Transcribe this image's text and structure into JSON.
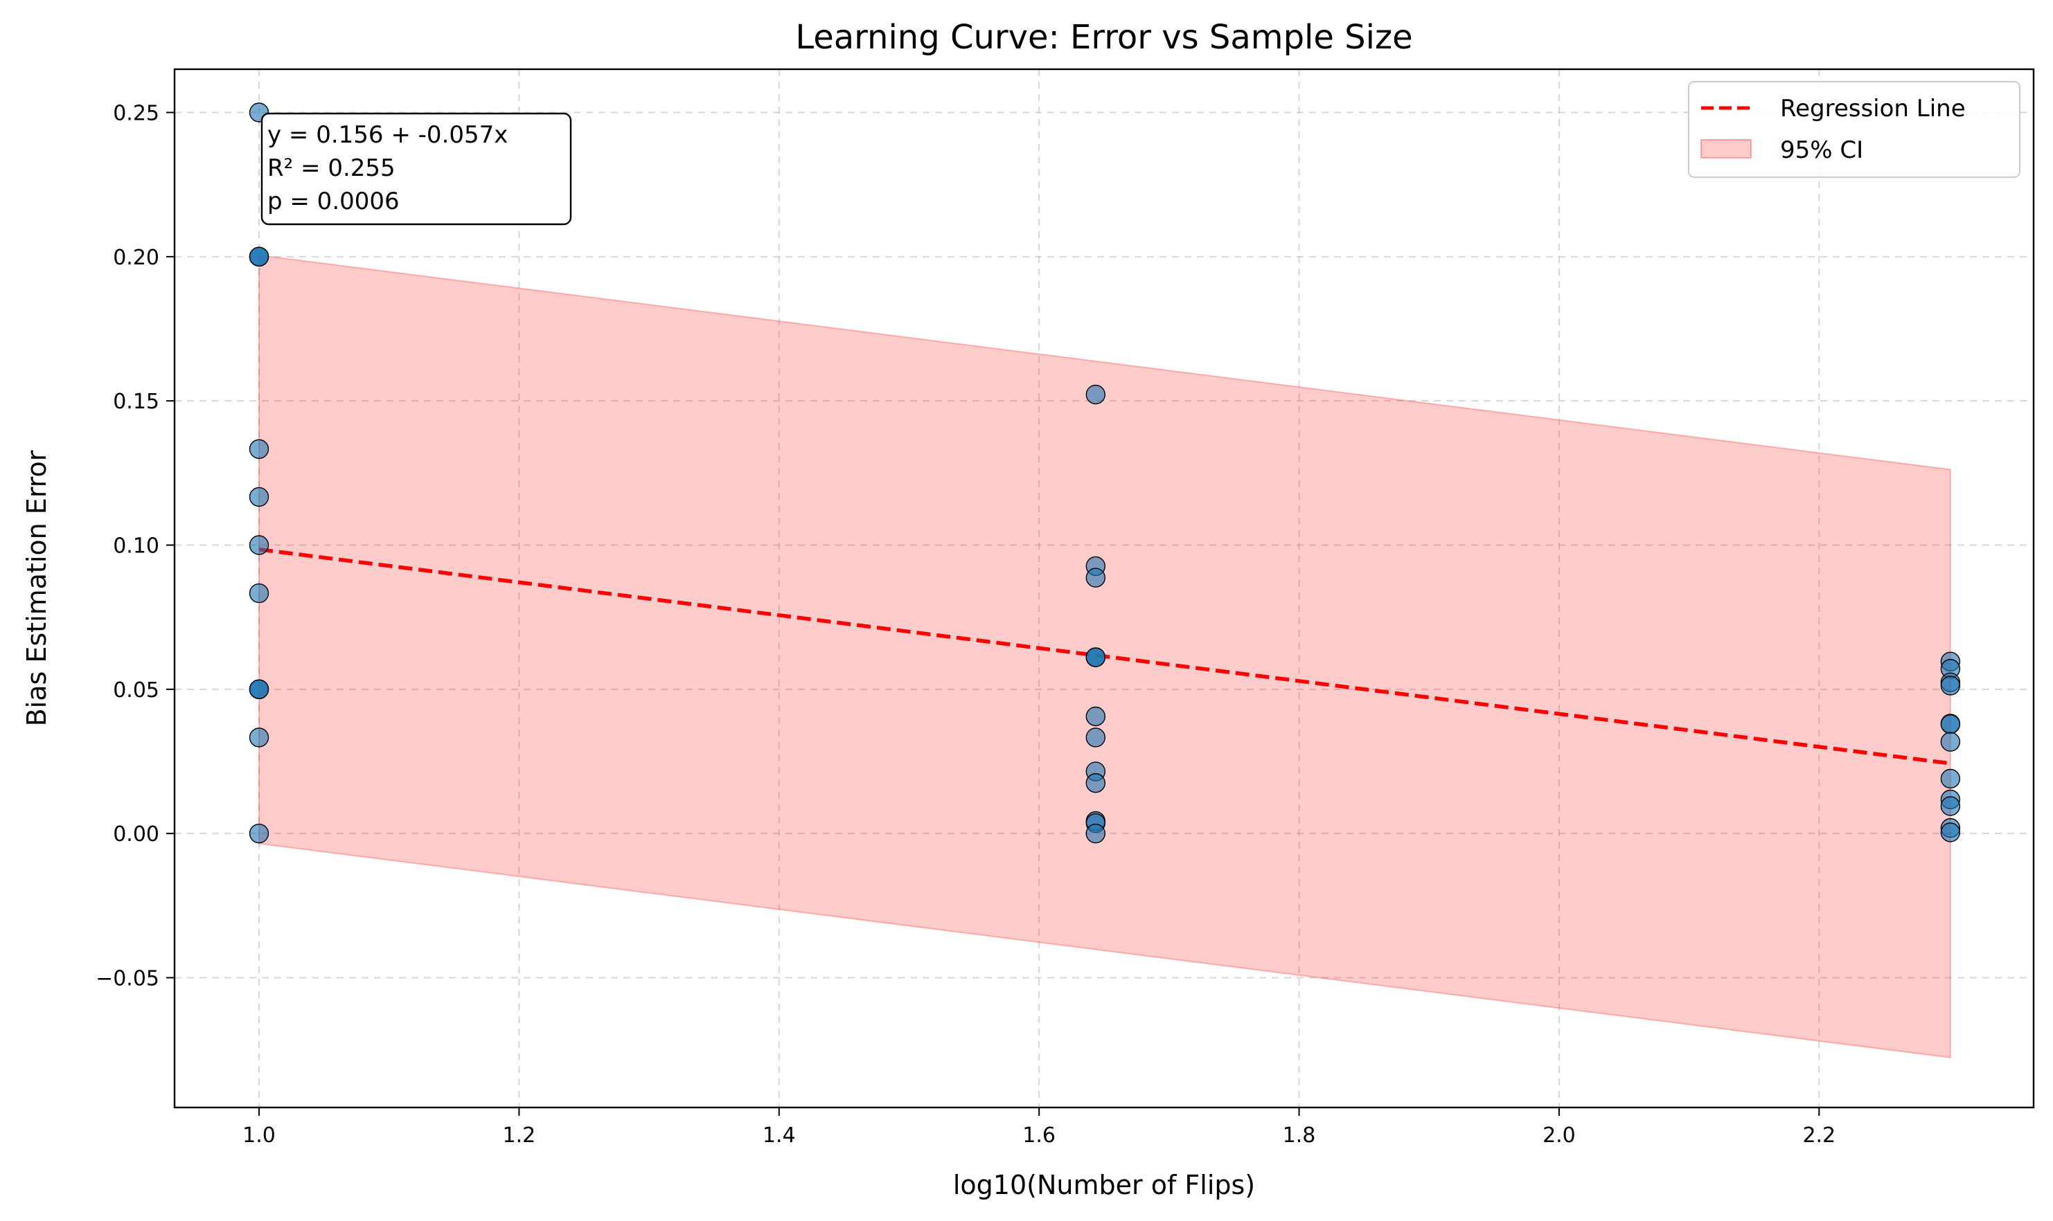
{
  "chart_data": {
    "type": "scatter",
    "title": "Learning Curve: Error vs Sample Size",
    "xlabel": "log10(Number of Flips)",
    "ylabel": "Bias Estimation Error",
    "xlim": [
      0.935,
      2.365
    ],
    "ylim": [
      -0.095,
      0.265
    ],
    "x_ticks": [
      1.0,
      1.2,
      1.4,
      1.6,
      1.8,
      2.0,
      2.2
    ],
    "x_tick_labels": [
      "1.0",
      "1.2",
      "1.4",
      "1.6",
      "1.8",
      "2.0",
      "2.2"
    ],
    "y_ticks": [
      -0.05,
      0.0,
      0.05,
      0.1,
      0.15,
      0.2,
      0.25
    ],
    "y_tick_labels": [
      "−0.05",
      "0.00",
      "0.05",
      "0.10",
      "0.15",
      "0.20",
      "0.25"
    ],
    "grid": true,
    "legend_position": "top-right",
    "point_color": "#1f77b4",
    "line_color": "#ff0000",
    "band_color": "#ff0000",
    "points": [
      {
        "x": 1.0,
        "y": 0.25
      },
      {
        "x": 1.0,
        "y": 0.2
      },
      {
        "x": 1.0,
        "y": 0.2
      },
      {
        "x": 1.0,
        "y": 0.2
      },
      {
        "x": 1.0,
        "y": 0.1333
      },
      {
        "x": 1.0,
        "y": 0.1167
      },
      {
        "x": 1.0,
        "y": 0.1
      },
      {
        "x": 1.0,
        "y": 0.0833
      },
      {
        "x": 1.0,
        "y": 0.05
      },
      {
        "x": 1.0,
        "y": 0.05
      },
      {
        "x": 1.0,
        "y": 0.05
      },
      {
        "x": 1.0,
        "y": 0.0333
      },
      {
        "x": 1.0,
        "y": 0.0
      },
      {
        "x": 1.6435,
        "y": 0.1522
      },
      {
        "x": 1.6435,
        "y": 0.0927
      },
      {
        "x": 1.6435,
        "y": 0.0887
      },
      {
        "x": 1.6435,
        "y": 0.0611
      },
      {
        "x": 1.6435,
        "y": 0.0611
      },
      {
        "x": 1.6435,
        "y": 0.0611
      },
      {
        "x": 1.6435,
        "y": 0.0406
      },
      {
        "x": 1.6435,
        "y": 0.0333
      },
      {
        "x": 1.6435,
        "y": 0.0215
      },
      {
        "x": 1.6435,
        "y": 0.0175
      },
      {
        "x": 1.6435,
        "y": 0.0043
      },
      {
        "x": 1.6435,
        "y": 0.0036
      },
      {
        "x": 1.6435,
        "y": 0.0
      },
      {
        "x": 2.301,
        "y": 0.0596
      },
      {
        "x": 2.301,
        "y": 0.0571
      },
      {
        "x": 2.301,
        "y": 0.0524
      },
      {
        "x": 2.301,
        "y": 0.0513
      },
      {
        "x": 2.301,
        "y": 0.0381
      },
      {
        "x": 2.301,
        "y": 0.0379
      },
      {
        "x": 2.301,
        "y": 0.0318
      },
      {
        "x": 2.301,
        "y": 0.019
      },
      {
        "x": 2.301,
        "y": 0.0118
      },
      {
        "x": 2.301,
        "y": 0.0095
      },
      {
        "x": 2.301,
        "y": 0.0019
      },
      {
        "x": 2.301,
        "y": 0.0004
      }
    ],
    "regression_line": {
      "name": "Regression Line",
      "x": [
        1.0,
        2.301
      ],
      "y": [
        0.0985,
        0.0243
      ]
    },
    "confidence_band": {
      "name": "95% CI",
      "x": [
        1.0,
        2.301
      ],
      "upper": [
        0.2005,
        0.1262
      ],
      "lower": [
        -0.0035,
        -0.0777
      ]
    },
    "annotation": {
      "lines": [
        "y = 0.156 + -0.057x",
        "R² = 0.255",
        "p = 0.0006"
      ]
    },
    "legend": [
      "Regression Line",
      "95% CI"
    ]
  }
}
